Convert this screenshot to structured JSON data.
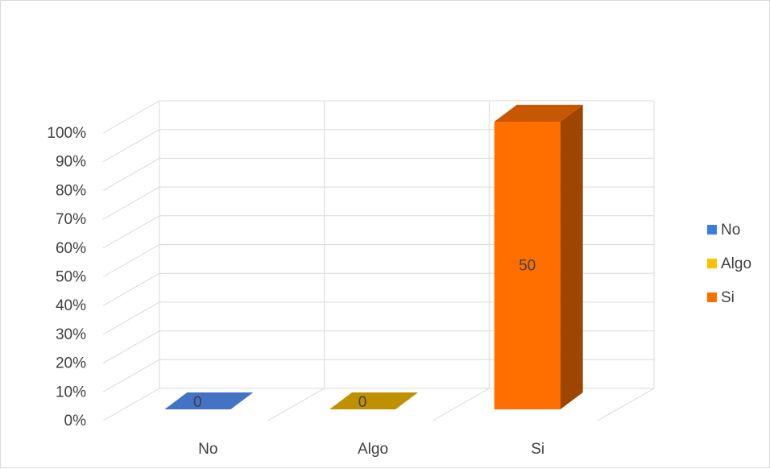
{
  "chart_data": {
    "type": "bar",
    "view": "3d-column",
    "categories": [
      "No",
      "Algo",
      "Si"
    ],
    "series": [
      {
        "name": "No",
        "values": [
          0,
          null,
          null
        ],
        "color": "#4472C4"
      },
      {
        "name": "Algo",
        "values": [
          null,
          0,
          null
        ],
        "color": "#BF9000"
      },
      {
        "name": "Si",
        "values": [
          null,
          null,
          50
        ],
        "color": "#FF6F00"
      }
    ],
    "series_percent": [
      0,
      0,
      100
    ],
    "data_labels": [
      "0",
      "0",
      "50"
    ],
    "ylim": [
      0,
      100
    ],
    "yticks": [
      "0%",
      "10%",
      "20%",
      "30%",
      "40%",
      "50%",
      "60%",
      "70%",
      "80%",
      "90%",
      "100%"
    ],
    "grid": true,
    "legend": {
      "position": "right",
      "items": [
        "No",
        "Algo",
        "Si"
      ],
      "colors": [
        "#3B7DDD",
        "#FFC000",
        "#FF6F00"
      ]
    }
  }
}
